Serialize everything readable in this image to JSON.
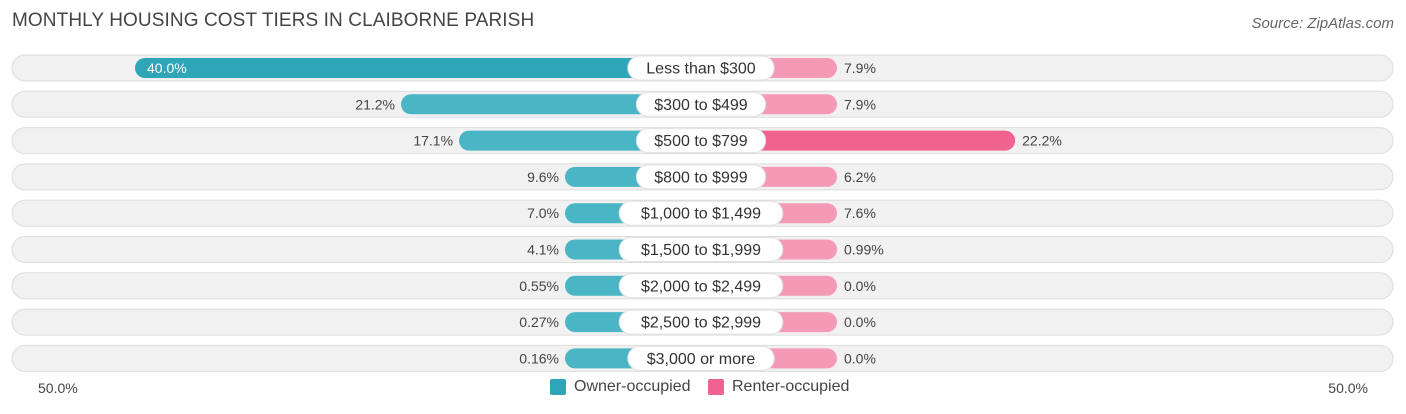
{
  "title": "MONTHLY HOUSING COST TIERS IN CLAIBORNE PARISH",
  "source": "Source: ZipAtlas.com",
  "colors": {
    "owner": "#4ab5c4",
    "owner_strong": "#2ea6b7",
    "renter": "#f59ab6",
    "renter_strong": "#f0628f",
    "row_bg": "#f1f1f1",
    "row_border": "#dddddd"
  },
  "legend": {
    "owner_label": "Owner-occupied",
    "renter_label": "Renter-occupied"
  },
  "axis": {
    "left_label": "50.0%",
    "right_label": "50.0%"
  },
  "chart_data": {
    "type": "bar",
    "orientation": "horizontal-diverging",
    "xlim": [
      0,
      50
    ],
    "categories": [
      "Less than $300",
      "$300 to $499",
      "$500 to $799",
      "$800 to $999",
      "$1,000 to $1,499",
      "$1,500 to $1,999",
      "$2,000 to $2,499",
      "$2,500 to $2,999",
      "$3,000 or more"
    ],
    "series": [
      {
        "name": "Owner-occupied",
        "values": [
          40.0,
          21.2,
          17.1,
          9.6,
          7.0,
          4.1,
          0.55,
          0.27,
          0.16
        ],
        "labels": [
          "40.0%",
          "21.2%",
          "17.1%",
          "9.6%",
          "7.0%",
          "4.1%",
          "0.55%",
          "0.27%",
          "0.16%"
        ]
      },
      {
        "name": "Renter-occupied",
        "values": [
          7.9,
          7.9,
          22.2,
          6.2,
          7.6,
          0.99,
          0.0,
          0.0,
          0.0
        ],
        "labels": [
          "7.9%",
          "7.9%",
          "22.2%",
          "6.2%",
          "7.6%",
          "0.99%",
          "0.0%",
          "0.0%",
          "0.0%"
        ]
      }
    ],
    "legend_position": "bottom-center"
  }
}
